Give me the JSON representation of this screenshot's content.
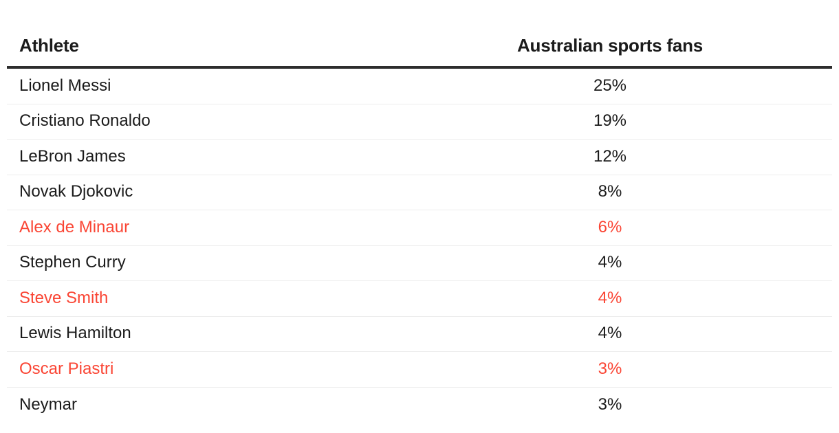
{
  "colors": {
    "text": "#1b1b1b",
    "highlight": "#fa4534",
    "header_rule": "#2d2d2d",
    "row_rule": "#ededed"
  },
  "table": {
    "columns": [
      {
        "label": "Athlete"
      },
      {
        "label": "Australian sports fans"
      }
    ],
    "rows": [
      {
        "athlete": "Lionel Messi",
        "value": "25%",
        "highlighted": false
      },
      {
        "athlete": "Cristiano Ronaldo",
        "value": "19%",
        "highlighted": false
      },
      {
        "athlete": "LeBron James",
        "value": "12%",
        "highlighted": false
      },
      {
        "athlete": "Novak Djokovic",
        "value": "8%",
        "highlighted": false
      },
      {
        "athlete": "Alex de Minaur",
        "value": "6%",
        "highlighted": true
      },
      {
        "athlete": "Stephen Curry",
        "value": "4%",
        "highlighted": false
      },
      {
        "athlete": "Steve Smith",
        "value": "4%",
        "highlighted": true
      },
      {
        "athlete": "Lewis Hamilton",
        "value": "4%",
        "highlighted": false
      },
      {
        "athlete": "Oscar Piastri",
        "value": "3%",
        "highlighted": true
      },
      {
        "athlete": "Neymar",
        "value": "3%",
        "highlighted": false
      }
    ]
  },
  "chart_data": {
    "type": "table",
    "columns": [
      "Athlete",
      "Australian sports fans"
    ],
    "categories": [
      "Lionel Messi",
      "Cristiano Ronaldo",
      "LeBron James",
      "Novak Djokovic",
      "Alex de Minaur",
      "Stephen Curry",
      "Steve Smith",
      "Lewis Hamilton",
      "Oscar Piastri",
      "Neymar"
    ],
    "values": [
      25,
      19,
      12,
      8,
      6,
      4,
      4,
      4,
      3,
      3
    ],
    "value_format": "percent",
    "highlighted_categories": [
      "Alex de Minaur",
      "Steve Smith",
      "Oscar Piastri"
    ],
    "highlight_color": "#fa4534"
  }
}
